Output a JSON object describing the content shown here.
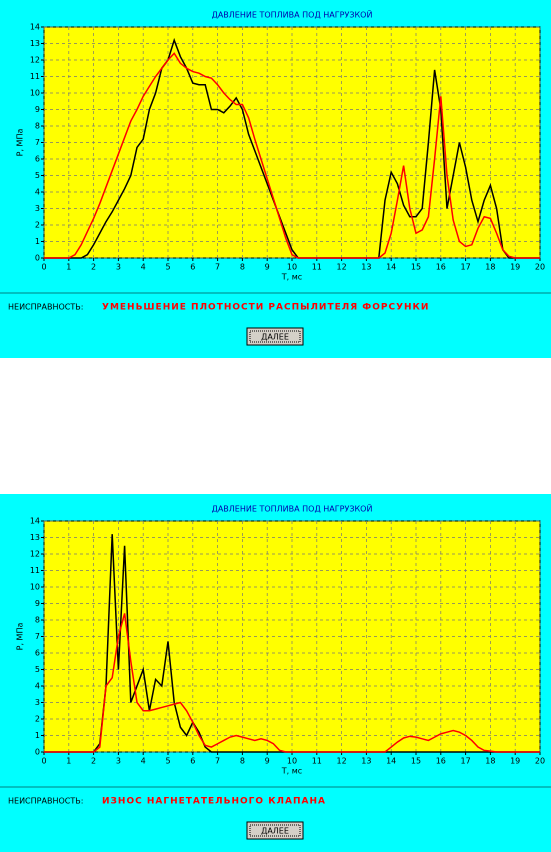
{
  "chart_data": [
    {
      "type": "line",
      "title": "ДАВЛЕНИЕ ТОПЛИВА ПОД НАГРУЗКОЙ",
      "xlabel": "T, мс",
      "ylabel": "P, МПа",
      "x": [
        0,
        0.25,
        0.5,
        0.75,
        1,
        1.25,
        1.5,
        1.75,
        2,
        2.25,
        2.5,
        2.75,
        3,
        3.25,
        3.5,
        3.75,
        4,
        4.25,
        4.5,
        4.75,
        5,
        5.25,
        5.5,
        5.75,
        6,
        6.25,
        6.5,
        6.75,
        7,
        7.25,
        7.5,
        7.75,
        8,
        8.25,
        8.5,
        8.75,
        9,
        9.25,
        9.5,
        9.75,
        10,
        10.25,
        10.5,
        10.75,
        11,
        11.25,
        11.5,
        11.75,
        12,
        12.25,
        12.5,
        12.75,
        13,
        13.25,
        13.5,
        13.75,
        14,
        14.25,
        14.5,
        14.75,
        15,
        15.25,
        15.5,
        15.75,
        16,
        16.25,
        16.5,
        16.75,
        17,
        17.25,
        17.5,
        17.75,
        18,
        18.25,
        18.5,
        18.75,
        19,
        19.25,
        19.5,
        19.75,
        20
      ],
      "series": [
        {
          "color": "#000000",
          "values": [
            0,
            0,
            0,
            0,
            0,
            0,
            0,
            0.2,
            0.8,
            1.5,
            2.2,
            2.8,
            3.5,
            4.2,
            5,
            6.7,
            7.2,
            9,
            10,
            11.5,
            12,
            13.2,
            12.2,
            11.5,
            10.6,
            10.5,
            10.5,
            9,
            9,
            8.8,
            9.2,
            9.7,
            9,
            7.5,
            6.5,
            5.5,
            4.5,
            3.5,
            2.5,
            1.5,
            0.5,
            0,
            0,
            0,
            0,
            0,
            0,
            0,
            0,
            0,
            0,
            0,
            0,
            0,
            0,
            3.5,
            5.2,
            4.5,
            3.2,
            2.5,
            2.5,
            3,
            7,
            11.4,
            9,
            3,
            5,
            7,
            5.5,
            3.5,
            2.2,
            3.5,
            4.4,
            3,
            0.5,
            0,
            0,
            0,
            0,
            0,
            0
          ]
        },
        {
          "color": "#ff0000",
          "values": [
            0,
            0,
            0,
            0,
            0,
            0.2,
            0.8,
            1.6,
            2.4,
            3.3,
            4.3,
            5.3,
            6.3,
            7.3,
            8.3,
            9,
            9.8,
            10.4,
            11,
            11.5,
            12,
            12.4,
            11.8,
            11.5,
            11.3,
            11.2,
            11,
            10.9,
            10.5,
            10,
            9.6,
            9.3,
            9.3,
            8.5,
            7.2,
            6,
            4.8,
            3.6,
            2.4,
            1.2,
            0.2,
            0,
            0,
            0,
            0,
            0,
            0,
            0,
            0,
            0,
            0,
            0,
            0,
            0,
            0,
            0.3,
            1.5,
            3.5,
            5.6,
            3,
            1.5,
            1.7,
            2.5,
            6,
            9.8,
            5,
            2.3,
            1,
            0.7,
            0.8,
            1.8,
            2.5,
            2.4,
            1.5,
            0.5,
            0.1,
            0,
            0,
            0,
            0,
            0
          ]
        }
      ],
      "xlim": [
        0,
        20
      ],
      "xticks": [
        0,
        1,
        2,
        3,
        4,
        5,
        6,
        7,
        8,
        9,
        10,
        11,
        12,
        13,
        14,
        15,
        16,
        17,
        18,
        19,
        20
      ],
      "ylim": [
        0,
        14
      ],
      "yticks": [
        0,
        1,
        2,
        3,
        4,
        5,
        6,
        7,
        8,
        9,
        10,
        11,
        12,
        13,
        14
      ],
      "grid": true
    },
    {
      "type": "line",
      "title": "ДАВЛЕНИЕ ТОПЛИВА ПОД НАГРУЗКОЙ",
      "xlabel": "T, мс",
      "ylabel": "P, МПа",
      "x": [
        0,
        0.25,
        0.5,
        0.75,
        1,
        1.25,
        1.5,
        1.75,
        2,
        2.25,
        2.5,
        2.75,
        3,
        3.25,
        3.5,
        3.75,
        4,
        4.25,
        4.5,
        4.75,
        5,
        5.25,
        5.5,
        5.75,
        6,
        6.25,
        6.5,
        6.75,
        7,
        7.25,
        7.5,
        7.75,
        8,
        8.25,
        8.5,
        8.75,
        9,
        9.25,
        9.5,
        9.75,
        10,
        10.25,
        10.5,
        10.75,
        11,
        11.25,
        11.5,
        11.75,
        12,
        12.25,
        12.5,
        12.75,
        13,
        13.25,
        13.5,
        13.75,
        14,
        14.25,
        14.5,
        14.75,
        15,
        15.25,
        15.5,
        15.75,
        16,
        16.25,
        16.5,
        16.75,
        17,
        17.25,
        17.5,
        17.75,
        18,
        18.25,
        18.5,
        18.75,
        19,
        19.25,
        19.5,
        19.75,
        20
      ],
      "series": [
        {
          "color": "#000000",
          "values": [
            0,
            0,
            0,
            0,
            0,
            0,
            0,
            0,
            0,
            0.5,
            4,
            13.2,
            5,
            12.5,
            3,
            4,
            5,
            2.5,
            4.4,
            4,
            6.7,
            3,
            1.5,
            1,
            1.8,
            1.2,
            0.3,
            0,
            0,
            0,
            0,
            0,
            0,
            0,
            0,
            0,
            0,
            0,
            0,
            0,
            0,
            0,
            0,
            0,
            0,
            0,
            0,
            0,
            0,
            0,
            0,
            0,
            0,
            0,
            0,
            0,
            0,
            0,
            0,
            0,
            0,
            0,
            0,
            0,
            0,
            0,
            0,
            0,
            0,
            0,
            0,
            0,
            0,
            0,
            0,
            0,
            0,
            0,
            0,
            0,
            0
          ]
        },
        {
          "color": "#ff0000",
          "values": [
            0,
            0,
            0,
            0,
            0,
            0,
            0,
            0,
            0,
            0.3,
            4,
            4.5,
            7,
            8.4,
            5.5,
            3,
            2.5,
            2.5,
            2.6,
            2.7,
            2.8,
            2.9,
            3,
            2.5,
            1.8,
            1,
            0.4,
            0.3,
            0.5,
            0.7,
            0.9,
            1,
            0.9,
            0.8,
            0.7,
            0.8,
            0.7,
            0.5,
            0.1,
            0,
            0,
            0,
            0,
            0,
            0,
            0,
            0,
            0,
            0,
            0,
            0,
            0,
            0,
            0,
            0,
            0,
            0.3,
            0.6,
            0.85,
            0.95,
            0.9,
            0.8,
            0.7,
            0.9,
            1.1,
            1.2,
            1.3,
            1.2,
            1,
            0.7,
            0.3,
            0.1,
            0.05,
            0,
            0,
            0,
            0,
            0,
            0,
            0,
            0
          ]
        }
      ],
      "xlim": [
        0,
        20
      ],
      "xticks": [
        0,
        1,
        2,
        3,
        4,
        5,
        6,
        7,
        8,
        9,
        10,
        11,
        12,
        13,
        14,
        15,
        16,
        17,
        18,
        19,
        20
      ],
      "ylim": [
        0,
        14
      ],
      "yticks": [
        0,
        1,
        2,
        3,
        4,
        5,
        6,
        7,
        8,
        9,
        10,
        11,
        12,
        13,
        14
      ],
      "grid": true
    }
  ],
  "panels": [
    {
      "fault_label": "НЕИСПРАВНОСТЬ:",
      "fault": "УМЕНЬШЕНИЕ ПЛОТНОСТИ РАСПЫЛИТЕЛЯ ФОРСУНКИ",
      "button": "ДАЛЕЕ"
    },
    {
      "fault_label": "НЕИСПРАВНОСТЬ:",
      "fault": "ИЗНОС НАГНЕТАТЕЛЬНОГО КЛАПАНА",
      "button": "ДАЛЕЕ"
    }
  ]
}
